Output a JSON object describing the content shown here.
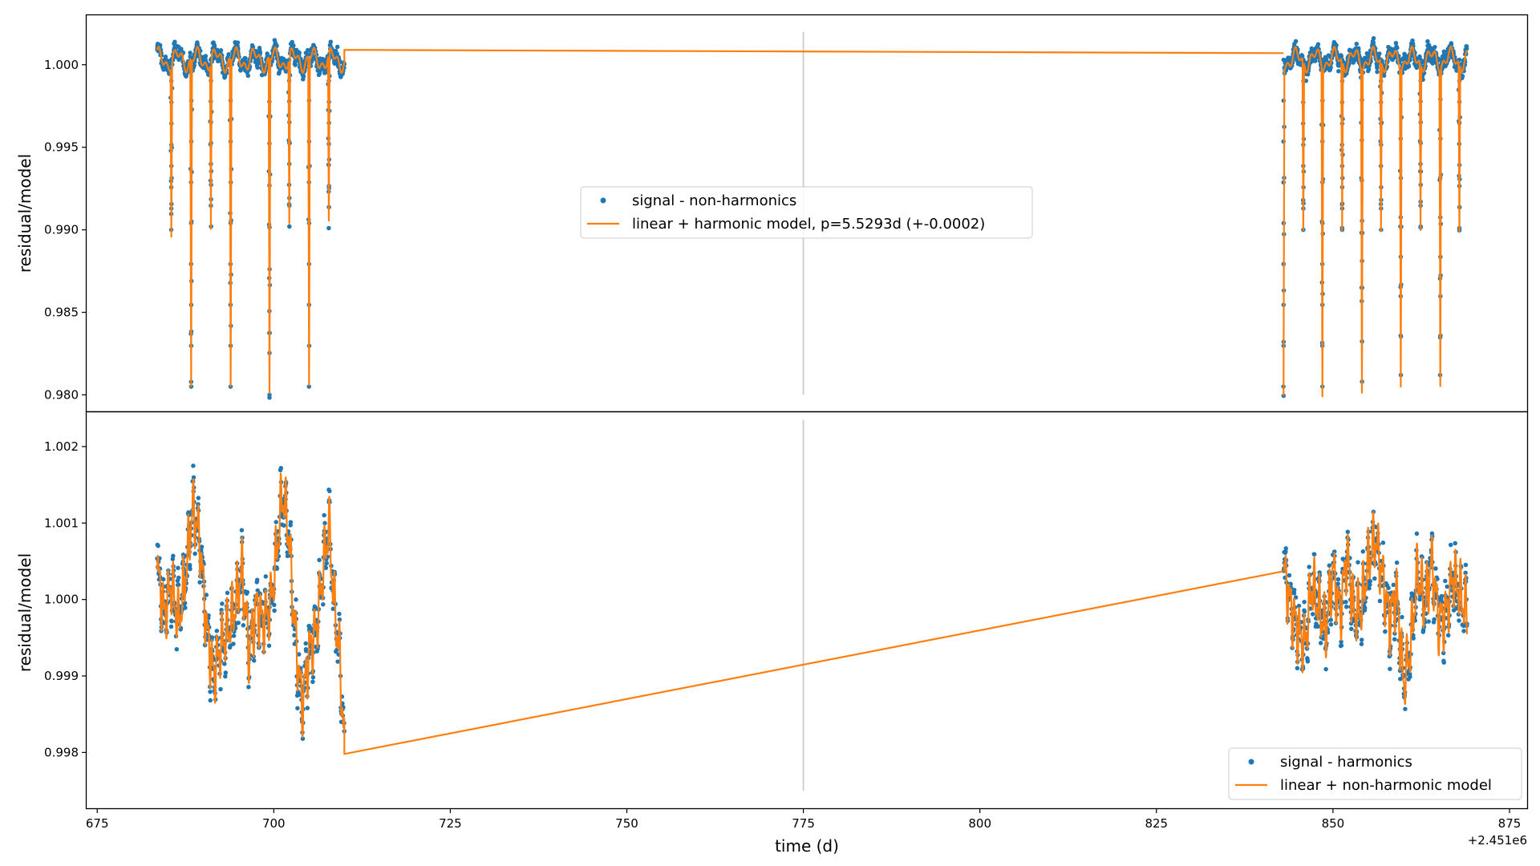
{
  "colors": {
    "signal": "#1f77b4",
    "model": "#ff7f0e",
    "gap_line": "#d0d0d0",
    "axes": "#000000",
    "background": "#ffffff"
  },
  "chart_data": [
    {
      "type": "scatter",
      "ylabel": "residual/model",
      "xlabel": "",
      "xlim": [
        673.5,
        877.5
      ],
      "ylim": [
        0.979,
        1.003
      ],
      "yticks": [
        0.98,
        0.985,
        0.99,
        0.995,
        1.0
      ],
      "ytick_labels": [
        "0.980",
        "0.985",
        "0.990",
        "0.995",
        "1.000"
      ],
      "grid": false,
      "legend_position": "center",
      "gap_marker_x": 775,
      "gap_marker_y": [
        0.98,
        1.002
      ],
      "segments": [
        {
          "x_start": 683.5,
          "x_end": 710.0,
          "baseline": 1.0003
        },
        {
          "x_start": 843.0,
          "x_end": 869.0,
          "baseline": 1.0003
        }
      ],
      "eclipses_x": [
        685.5,
        688.3,
        691.1,
        693.9,
        699.4,
        702.2,
        705.0,
        707.8,
        843.0,
        845.8,
        848.5,
        851.3,
        854.1,
        856.8,
        859.6,
        862.4,
        865.2,
        867.9
      ],
      "eclipse_depths": [
        0.99,
        0.9805,
        0.9902,
        0.9805,
        0.98,
        0.9902,
        0.9805,
        0.9901,
        0.9805,
        0.99,
        0.9805,
        0.99,
        0.9808,
        0.99,
        0.9812,
        0.9902,
        0.9812,
        0.9901
      ],
      "series": [
        {
          "name": "signal - non-harmonics",
          "kind": "points",
          "color": "#1f77b4"
        },
        {
          "name": "linear + harmonic model, p=5.5293d (+-0.0002)",
          "kind": "line",
          "color": "#ff7f0e"
        }
      ]
    },
    {
      "type": "scatter",
      "ylabel": "residual/model",
      "xlabel": "time (d)",
      "xlim": [
        673.5,
        877.5
      ],
      "ylim": [
        0.99727,
        1.00245
      ],
      "xticks": [
        675,
        700,
        725,
        750,
        775,
        800,
        825,
        850,
        875
      ],
      "xtick_labels": [
        "675",
        "700",
        "725",
        "750",
        "775",
        "800",
        "825",
        "850",
        "875"
      ],
      "x_offset_label": "+2.451e6",
      "yticks": [
        0.998,
        0.999,
        1.0,
        1.001,
        1.002
      ],
      "ytick_labels": [
        "0.998",
        "0.999",
        "1.000",
        "1.001",
        "1.002"
      ],
      "grid": false,
      "legend_position": "lower right",
      "gap_marker_x": 775,
      "gap_marker_y": [
        0.9975,
        1.00235
      ],
      "segments": [
        {
          "x_start": 683.5,
          "x_end": 710.0
        },
        {
          "x_start": 843.0,
          "x_end": 869.0
        }
      ],
      "model_knots": [
        [
          683.5,
          1.0004
        ],
        [
          684.5,
          0.9998
        ],
        [
          685.5,
          1.0002
        ],
        [
          686.5,
          0.9997
        ],
        [
          687.5,
          1.0003
        ],
        [
          688.5,
          1.0012
        ],
        [
          689.5,
          1.0008
        ],
        [
          690.5,
          0.9996
        ],
        [
          691.5,
          0.999
        ],
        [
          692.5,
          0.9994
        ],
        [
          693.5,
          0.9996
        ],
        [
          694.5,
          0.9999
        ],
        [
          695.5,
          1.0004
        ],
        [
          696.5,
          0.9993
        ],
        [
          697.5,
          0.9999
        ],
        [
          698.5,
          0.9997
        ],
        [
          699.5,
          0.9999
        ],
        [
          700.5,
          1.0007
        ],
        [
          701.2,
          1.0014
        ],
        [
          702.0,
          1.001
        ],
        [
          703.0,
          0.9996
        ],
        [
          704.0,
          0.9986
        ],
        [
          705.0,
          0.9993
        ],
        [
          706.0,
          0.9996
        ],
        [
          707.0,
          1.0004
        ],
        [
          707.8,
          1.001
        ],
        [
          708.5,
          1.0
        ],
        [
          709.3,
          0.9993
        ],
        [
          710.0,
          0.9981
        ],
        [
          843.0,
          1.0004
        ],
        [
          844.0,
          0.9999
        ],
        [
          845.0,
          0.9996
        ],
        [
          846.0,
          0.9994
        ],
        [
          847.0,
          1.0002
        ],
        [
          848.0,
          0.9999
        ],
        [
          849.0,
          0.9996
        ],
        [
          850.0,
          1.0004
        ],
        [
          851.0,
          0.9998
        ],
        [
          852.0,
          1.0006
        ],
        [
          853.0,
          0.9998
        ],
        [
          854.0,
          0.9999
        ],
        [
          855.0,
          1.0005
        ],
        [
          856.0,
          1.0008
        ],
        [
          857.0,
          1.0003
        ],
        [
          858.0,
          0.9997
        ],
        [
          859.0,
          1.0001
        ],
        [
          860.0,
          0.9989
        ],
        [
          861.0,
          0.9994
        ],
        [
          862.0,
          1.0004
        ],
        [
          863.0,
          0.9999
        ],
        [
          864.0,
          1.0005
        ],
        [
          865.0,
          0.9997
        ],
        [
          866.0,
          0.9998
        ],
        [
          867.0,
          1.0003
        ],
        [
          868.0,
          1.0001
        ],
        [
          869.0,
          0.9998
        ]
      ],
      "bridge_line": [
        [
          710.0,
          0.99798
        ],
        [
          843.0,
          1.00037
        ]
      ],
      "series": [
        {
          "name": "signal - harmonics",
          "kind": "points",
          "color": "#1f77b4"
        },
        {
          "name": "linear + non-harmonic model",
          "kind": "line",
          "color": "#ff7f0e"
        }
      ]
    }
  ]
}
